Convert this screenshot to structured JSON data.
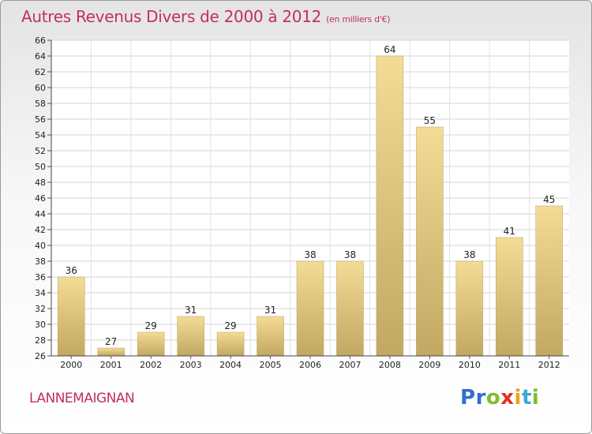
{
  "title": "Autres Revenus Divers de 2000 à 2012",
  "subtitle": "(en milliers d'€)",
  "place": "LANNEMAIGNAN",
  "brand": {
    "letters": [
      "P",
      "r",
      "o",
      "x",
      "i",
      "t",
      "i"
    ],
    "colors": [
      "#2f6fd0",
      "#2f6fd0",
      "#7cbf2a",
      "#e03020",
      "#f0a020",
      "#3aa9d8",
      "#7cbf2a"
    ]
  },
  "colors": {
    "title": "#c03060",
    "bar_light": "#f3dc96",
    "bar_dark": "#c2a862"
  },
  "chart_data": {
    "type": "bar",
    "categories": [
      "2000",
      "2001",
      "2002",
      "2003",
      "2004",
      "2005",
      "2006",
      "2007",
      "2008",
      "2009",
      "2010",
      "2011",
      "2012"
    ],
    "values": [
      36,
      27,
      29,
      31,
      29,
      31,
      38,
      38,
      64,
      55,
      38,
      41,
      45
    ],
    "ylim": [
      26,
      66
    ],
    "yticks": [
      26,
      28,
      30,
      32,
      34,
      36,
      38,
      40,
      42,
      44,
      46,
      48,
      50,
      52,
      54,
      56,
      58,
      60,
      62,
      64,
      66
    ],
    "grid": true,
    "data_labels": true
  }
}
